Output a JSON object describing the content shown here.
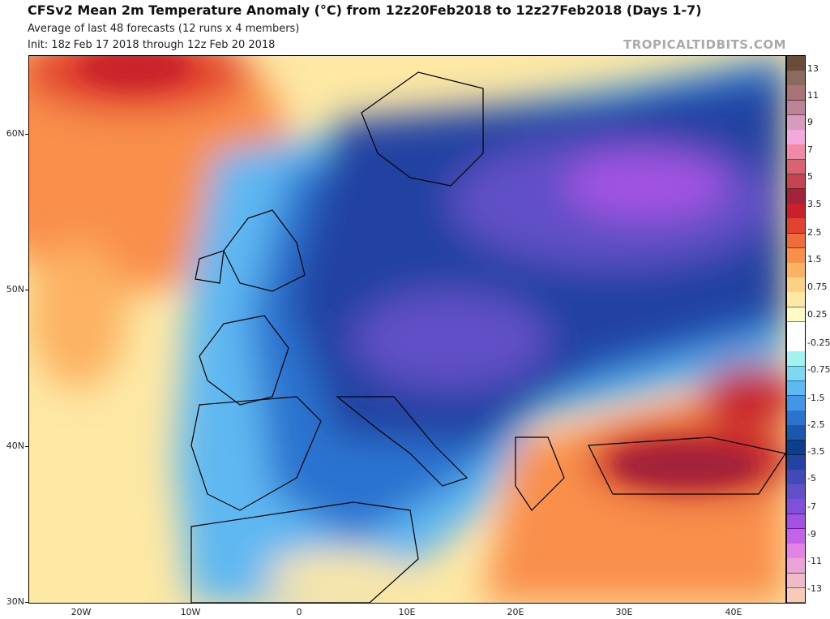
{
  "header": {
    "title": "CFSv2 Mean 2m Temperature Anomaly (°C) from 12z20Feb2018 to 12z27Feb2018 (Days 1-7)",
    "subtitle": "Average of last 48 forecasts (12 runs x 4 members)",
    "init": "Init: 18z Feb 17 2018 through 12z Feb 20 2018",
    "brand": "TROPICALTIDBITS.COM"
  },
  "map": {
    "lat_labels": [
      "60N",
      "50N",
      "40N",
      "30N"
    ],
    "lon_labels": [
      "20W",
      "10W",
      "0",
      "10E",
      "20E",
      "30E",
      "40E"
    ]
  },
  "colorbar": {
    "labels": [
      "13",
      "11",
      "9",
      "7",
      "5",
      "3.5",
      "2.5",
      "1.5",
      "0.75",
      "0.25",
      "-0.25",
      "-0.75",
      "-1.5",
      "-2.5",
      "-3.5",
      "-5",
      "-7",
      "-9",
      "-11",
      "-13"
    ],
    "colors": [
      "#6b4b3a",
      "#8c6a5c",
      "#a87478",
      "#bb8597",
      "#d69bbd",
      "#f3a8de",
      "#f08aa8",
      "#dc6272",
      "#c44452",
      "#a2233a",
      "#c9202b",
      "#e2432f",
      "#f06c3d",
      "#f98f4b",
      "#fcb262",
      "#fdd184",
      "#fde8a4",
      "#fefbc6",
      "#ffffff",
      "#ffffff",
      "#a2f2f0",
      "#7fd8f2",
      "#5fb8f2",
      "#4396e6",
      "#2a73d0",
      "#1a58ae",
      "#0b3f8e",
      "#2342a2",
      "#4349b8",
      "#6150c8",
      "#8050d9",
      "#a352e2",
      "#c462ea",
      "#e383e6",
      "#eba2d6",
      "#f2b9c8",
      "#f8cab8"
    ]
  }
}
